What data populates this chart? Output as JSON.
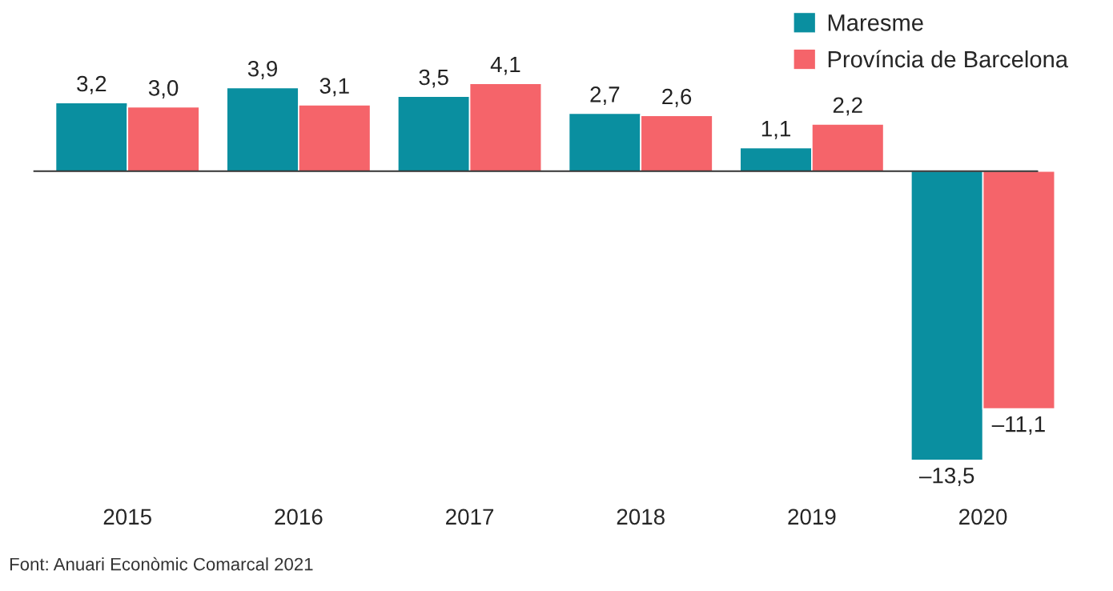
{
  "chart_data": {
    "type": "bar",
    "categories": [
      "2015",
      "2016",
      "2017",
      "2018",
      "2019",
      "2020"
    ],
    "series": [
      {
        "name": "Maresme",
        "color": "#0a8fa0",
        "values": [
          3.2,
          3.9,
          3.5,
          2.7,
          1.1,
          -13.5
        ],
        "value_labels": [
          "3,2",
          "3,9",
          "3,5",
          "2,7",
          "1,1",
          "–13,5"
        ]
      },
      {
        "name": "Província de Barcelona",
        "color": "#f5646a",
        "values": [
          3.0,
          3.1,
          4.1,
          2.6,
          2.2,
          -11.1
        ],
        "value_labels": [
          "3,0",
          "3,1",
          "4,1",
          "2,6",
          "2,2",
          "–11,1"
        ]
      }
    ],
    "legend": "top right",
    "grid": false,
    "annotations": [
      "Font: Anuari Econòmic Comarcal 2021"
    ]
  }
}
